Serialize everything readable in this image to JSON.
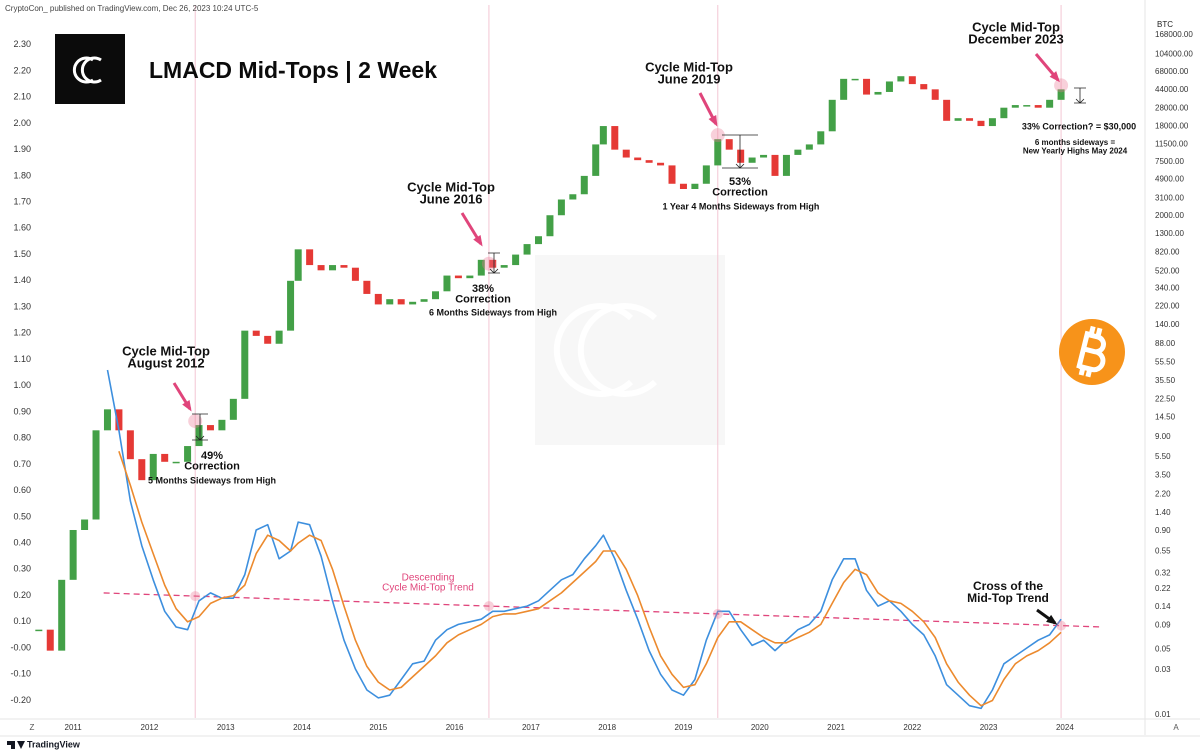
{
  "header": {
    "attribution": "CryptoCon_ published on TradingView.com, Dec 26, 2023 10:24 UTC-5"
  },
  "footer": {
    "brand": "TradingView",
    "buttons": [
      "Z",
      "A"
    ]
  },
  "chart_data": {
    "type": "candlestick",
    "title": "LMACD Mid-Tops | 2 Week",
    "y2_label": "BTC",
    "x": [
      2010.55,
      2010.7,
      2010.85,
      2011.0,
      2011.15,
      2011.3,
      2011.45,
      2011.6,
      2011.75,
      2011.9,
      2012.05,
      2012.2,
      2012.35,
      2012.5,
      2012.65,
      2012.8,
      2012.95,
      2013.1,
      2013.25,
      2013.4,
      2013.55,
      2013.7,
      2013.85,
      2013.95,
      2014.1,
      2014.25,
      2014.4,
      2014.55,
      2014.7,
      2014.85,
      2015.0,
      2015.15,
      2015.3,
      2015.45,
      2015.6,
      2015.75,
      2015.9,
      2016.05,
      2016.2,
      2016.35,
      2016.5,
      2016.65,
      2016.8,
      2016.95,
      2017.1,
      2017.25,
      2017.4,
      2017.55,
      2017.7,
      2017.85,
      2017.95,
      2018.1,
      2018.25,
      2018.4,
      2018.55,
      2018.7,
      2018.85,
      2019.0,
      2019.15,
      2019.3,
      2019.45,
      2019.6,
      2019.75,
      2019.9,
      2020.05,
      2020.2,
      2020.35,
      2020.5,
      2020.65,
      2020.8,
      2020.95,
      2021.1,
      2021.25,
      2021.4,
      2021.55,
      2021.7,
      2021.85,
      2022.0,
      2022.15,
      2022.3,
      2022.45,
      2022.6,
      2022.75,
      2022.9,
      2023.05,
      2023.2,
      2023.35,
      2023.5,
      2023.65,
      2023.8,
      2023.95
    ],
    "series": [
      {
        "type": "candlestick",
        "up_color": "#43a047",
        "down_color": "#e53935",
        "values": [
          0.07,
          -0.01,
          0.26,
          0.45,
          0.49,
          0.83,
          0.91,
          0.83,
          0.72,
          0.64,
          0.74,
          0.71,
          0.71,
          0.77,
          0.85,
          0.83,
          0.87,
          0.95,
          1.21,
          1.19,
          1.16,
          1.21,
          1.4,
          1.52,
          1.46,
          1.44,
          1.46,
          1.45,
          1.4,
          1.35,
          1.31,
          1.33,
          1.31,
          1.32,
          1.33,
          1.36,
          1.42,
          1.41,
          1.42,
          1.48,
          1.45,
          1.46,
          1.5,
          1.54,
          1.57,
          1.65,
          1.71,
          1.73,
          1.8,
          1.92,
          1.99,
          1.9,
          1.87,
          1.86,
          1.85,
          1.84,
          1.77,
          1.75,
          1.77,
          1.84,
          1.94,
          1.9,
          1.85,
          1.87,
          1.88,
          1.8,
          1.88,
          1.9,
          1.92,
          1.97,
          2.09,
          2.17,
          2.17,
          2.11,
          2.12,
          2.16,
          2.18,
          2.15,
          2.13,
          2.09,
          2.01,
          2.02,
          2.01,
          1.99,
          2.02,
          2.06,
          2.07,
          2.07,
          2.06,
          2.09,
          2.13
        ]
      },
      {
        "type": "line",
        "color": "#3d8fde",
        "values": [
          null,
          null,
          null,
          null,
          null,
          null,
          1.06,
          0.83,
          0.56,
          0.39,
          0.26,
          0.14,
          0.08,
          0.07,
          0.18,
          0.21,
          0.19,
          0.19,
          0.28,
          0.45,
          0.47,
          0.34,
          0.37,
          0.48,
          0.47,
          0.35,
          0.18,
          0.03,
          -0.08,
          -0.16,
          -0.19,
          -0.18,
          -0.12,
          -0.06,
          -0.05,
          0.03,
          0.07,
          0.09,
          0.1,
          0.11,
          0.14,
          0.14,
          0.15,
          0.16,
          0.18,
          0.22,
          0.26,
          0.28,
          0.34,
          0.39,
          0.43,
          0.34,
          0.22,
          0.11,
          -0.01,
          -0.1,
          -0.16,
          -0.18,
          -0.12,
          0.03,
          0.14,
          0.14,
          0.07,
          0.01,
          0.03,
          -0.01,
          0.03,
          0.07,
          0.09,
          0.14,
          0.26,
          0.34,
          0.34,
          0.22,
          0.16,
          0.18,
          0.14,
          0.09,
          0.05,
          -0.03,
          -0.14,
          -0.18,
          -0.22,
          -0.23,
          -0.16,
          -0.06,
          -0.03,
          0.0,
          0.03,
          0.05,
          0.11
        ]
      },
      {
        "type": "line",
        "color": "#ec8a2e",
        "values": [
          null,
          null,
          null,
          null,
          null,
          null,
          null,
          0.75,
          0.62,
          0.48,
          0.36,
          0.24,
          0.15,
          0.1,
          0.12,
          0.17,
          0.19,
          0.2,
          0.24,
          0.36,
          0.43,
          0.41,
          0.37,
          0.4,
          0.43,
          0.41,
          0.3,
          0.16,
          0.03,
          -0.07,
          -0.13,
          -0.16,
          -0.15,
          -0.11,
          -0.07,
          -0.03,
          0.02,
          0.05,
          0.07,
          0.09,
          0.12,
          0.13,
          0.13,
          0.14,
          0.15,
          0.18,
          0.21,
          0.25,
          0.29,
          0.33,
          0.37,
          0.37,
          0.3,
          0.2,
          0.08,
          -0.03,
          -0.1,
          -0.15,
          -0.14,
          -0.06,
          0.04,
          0.1,
          0.1,
          0.07,
          0.04,
          0.02,
          0.02,
          0.04,
          0.06,
          0.09,
          0.17,
          0.25,
          0.3,
          0.28,
          0.21,
          0.18,
          0.17,
          0.14,
          0.1,
          0.04,
          -0.06,
          -0.13,
          -0.18,
          -0.22,
          -0.2,
          -0.12,
          -0.06,
          -0.03,
          -0.01,
          0.02,
          0.06
        ]
      }
    ],
    "trend_line": {
      "x": [
        2011.4,
        2024.5
      ],
      "values": [
        0.21,
        0.08
      ],
      "color": "#e0457b",
      "label": [
        "Descending",
        "Cycle Mid-Top Trend"
      ]
    },
    "annotations": [
      {
        "x": 2012.6,
        "title": [
          "Cycle Mid-Top",
          "August 2012"
        ],
        "correction": [
          "49%",
          "Correction"
        ],
        "note": [
          "5 Months Sideways from High"
        ]
      },
      {
        "x": 2016.45,
        "title": [
          "Cycle Mid-Top",
          "June 2016"
        ],
        "correction": [
          "38%",
          "Correction"
        ],
        "note": [
          "6 Months Sideways from High"
        ]
      },
      {
        "x": 2019.45,
        "title": [
          "Cycle Mid-Top",
          "June 2019"
        ],
        "correction": [
          "53%",
          "Correction"
        ],
        "note": [
          "1 Year 4 Months Sideways from High"
        ]
      },
      {
        "x": 2023.95,
        "title": [
          "Cycle Mid-Top",
          "December 2023"
        ],
        "correction": [
          "33% Correction? = $30,000"
        ],
        "note": [
          "6 months sideways =",
          "New Yearly Highs May 2024"
        ]
      }
    ],
    "callout": [
      "Cross of the",
      "Mid-Top Trend"
    ],
    "xlim": [
      2010.5,
      2025.05
    ],
    "xticks": [
      2011,
      2012,
      2013,
      2014,
      2015,
      2016,
      2017,
      2018,
      2019,
      2020,
      2021,
      2022,
      2023,
      2024
    ],
    "ylim": [
      -0.25,
      2.45
    ],
    "yticks": [
      {
        "value": -0.2,
        "label": "-0.20"
      },
      {
        "value": -0.1,
        "label": "-0.10"
      },
      {
        "value": 0,
        "label": "-0.00"
      },
      {
        "value": 0.1,
        "label": "0.10"
      },
      {
        "value": 0.2,
        "label": "0.20"
      },
      {
        "value": 0.3,
        "label": "0.30"
      },
      {
        "value": 0.4,
        "label": "0.40"
      },
      {
        "value": 0.5,
        "label": "0.50"
      },
      {
        "value": 0.6,
        "label": "0.60"
      },
      {
        "value": 0.7,
        "label": "0.70"
      },
      {
        "value": 0.8,
        "label": "0.80"
      },
      {
        "value": 0.9,
        "label": "0.90"
      },
      {
        "value": 1.0,
        "label": "1.00"
      },
      {
        "value": 1.1,
        "label": "1.10"
      },
      {
        "value": 1.2,
        "label": "1.20"
      },
      {
        "value": 1.3,
        "label": "1.30"
      },
      {
        "value": 1.4,
        "label": "1.40"
      },
      {
        "value": 1.5,
        "label": "1.50"
      },
      {
        "value": 1.6,
        "label": "1.60"
      },
      {
        "value": 1.7,
        "label": "1.70"
      },
      {
        "value": 1.8,
        "label": "1.80"
      },
      {
        "value": 1.9,
        "label": "1.90"
      },
      {
        "value": 2.0,
        "label": "2.00"
      },
      {
        "value": 2.1,
        "label": "2.10"
      },
      {
        "value": 2.2,
        "label": "2.20"
      },
      {
        "value": 2.3,
        "label": "2.30"
      }
    ],
    "y2_log": true,
    "y2lim": [
      0.01,
      350000
    ],
    "y2ticks": [
      {
        "value": 168000,
        "label": "168000.00"
      },
      {
        "value": 104000,
        "label": "104000.00"
      },
      {
        "value": 68000,
        "label": "68000.00"
      },
      {
        "value": 44000,
        "label": "44000.00"
      },
      {
        "value": 28000,
        "label": "28000.00"
      },
      {
        "value": 18000,
        "label": "18000.00"
      },
      {
        "value": 11500,
        "label": "11500.00"
      },
      {
        "value": 7500,
        "label": "7500.00"
      },
      {
        "value": 4900,
        "label": "4900.00"
      },
      {
        "value": 3100,
        "label": "3100.00"
      },
      {
        "value": 2000,
        "label": "2000.00"
      },
      {
        "value": 1300,
        "label": "1300.00"
      },
      {
        "value": 820,
        "label": "820.00"
      },
      {
        "value": 520,
        "label": "520.00"
      },
      {
        "value": 340,
        "label": "340.00"
      },
      {
        "value": 220,
        "label": "220.00"
      },
      {
        "value": 140,
        "label": "140.00"
      },
      {
        "value": 88,
        "label": "88.00"
      },
      {
        "value": 55.5,
        "label": "55.50"
      },
      {
        "value": 35.5,
        "label": "35.50"
      },
      {
        "value": 22.5,
        "label": "22.50"
      },
      {
        "value": 14.5,
        "label": "14.50"
      },
      {
        "value": 9,
        "label": "9.00"
      },
      {
        "value": 5.5,
        "label": "5.50"
      },
      {
        "value": 3.5,
        "label": "3.50"
      },
      {
        "value": 2.2,
        "label": "2.20"
      },
      {
        "value": 1.4,
        "label": "1.40"
      },
      {
        "value": 0.9,
        "label": "0.90"
      },
      0.55,
      0.32,
      0.22,
      0.14,
      0.09,
      0.05,
      0.03,
      0.01
    ],
    "grid": false
  }
}
